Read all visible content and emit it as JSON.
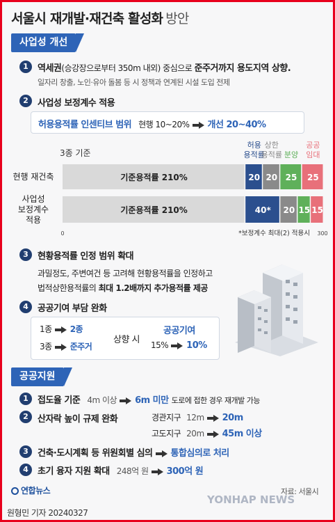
{
  "title": {
    "main": "서울시 재개발·재건축 활성화",
    "sub": "방안"
  },
  "section1": {
    "label": "사업성 개선"
  },
  "item1": {
    "num": "1",
    "heading_bold": "역세권",
    "heading_paren": "(승강장으로부터 350m 내외) 중심으로 ",
    "heading_tail": "준주거까지 용도지역 상향",
    "heading_end": ".",
    "detail": "일자리 창출, 노인·유아 돌봄 등 시 정책과 연계된 시설 도입 전제"
  },
  "item2": {
    "num": "2",
    "heading": "사업성 보정계수 적용",
    "box_label": "허용용적률 인센티브 범위",
    "current": "현행 10~20%",
    "improved": "개선 20~40%"
  },
  "chart_data": {
    "type": "bar",
    "orientation": "horizontal-stacked",
    "subtitle": "3종 기준",
    "categories": [
      "현행 재건축",
      "사업성 보정계수 적용"
    ],
    "category_lines": [
      [
        "현행 재건축"
      ],
      [
        "사업성",
        "보정계수",
        "적용"
      ]
    ],
    "segments": [
      {
        "name": "기준용적률",
        "color": "#d9d9d9",
        "values": [
          210,
          210
        ],
        "labels": [
          "기준용적률 210%",
          "기준용적률 210%"
        ],
        "legend_lines": []
      },
      {
        "name": "허용용적률",
        "color": "#2b4f8e",
        "values": [
          20,
          40
        ],
        "labels": [
          "20",
          "40*"
        ],
        "legend_lines": [
          "허용",
          "용적률"
        ]
      },
      {
        "name": "상한용적률",
        "color": "#8a8a8a",
        "values": [
          20,
          20
        ],
        "labels": [
          "20",
          "20"
        ],
        "legend_lines": [
          "상한",
          "용적률"
        ]
      },
      {
        "name": "분양",
        "color": "#5fb05a",
        "values": [
          25,
          15
        ],
        "labels": [
          "25",
          "15"
        ],
        "legend_lines": [
          "분양"
        ]
      },
      {
        "name": "공공임대",
        "color": "#e8707a",
        "values": [
          25,
          15
        ],
        "labels": [
          "25",
          "15"
        ],
        "legend_lines": [
          "공공",
          "임대"
        ]
      }
    ],
    "xlim": [
      0,
      300
    ],
    "xticks": [
      "0",
      "300"
    ],
    "note": "*보정계수 최대(2) 적용시"
  },
  "item3": {
    "num": "3",
    "heading": "현황용적률 인정 범위 확대",
    "line1": "과밀정도, 주변여건 등 고려해 현황용적률을 인정하고",
    "line2_pre": "법적상한용적률의 ",
    "line2_bold": "최대 1.2배까지 추가용적률 제공"
  },
  "item4": {
    "num": "4",
    "heading": "공공기여 부담 완화",
    "r1_from": "1종",
    "r1_to": "2종",
    "r2_from": "3종",
    "r2_to": "준주거",
    "mid": "상향 시",
    "pc_label": "공공기여",
    "pc_from": "15%",
    "pc_to": "10%"
  },
  "section2": {
    "label": "공공지원"
  },
  "s1": {
    "num": "1",
    "heading": "접도율 기준",
    "from": "4m 이상",
    "to": "6m 미만",
    "tail": "도로에 접한 경우 재개발 가능"
  },
  "s2": {
    "num": "2",
    "heading": "산자락 높이 규제 완화",
    "a_label": "경관지구",
    "a_from": "12m",
    "a_to": "20m",
    "b_label": "고도지구",
    "b_from": "20m",
    "b_to": "45m 이상"
  },
  "s3": {
    "num": "3",
    "heading": "건축·도시계획 등 위원회별 심의",
    "to": "통합심의로 처리"
  },
  "s4": {
    "num": "4",
    "heading": "초기 융자 지원 확대",
    "from": "248억 원",
    "to": "300억 원"
  },
  "footer": {
    "source": "자료: 서울시",
    "logo": "연합뉴스",
    "byline": "원형민 기자  20240327",
    "watermark": "YONHAP NEWS"
  }
}
